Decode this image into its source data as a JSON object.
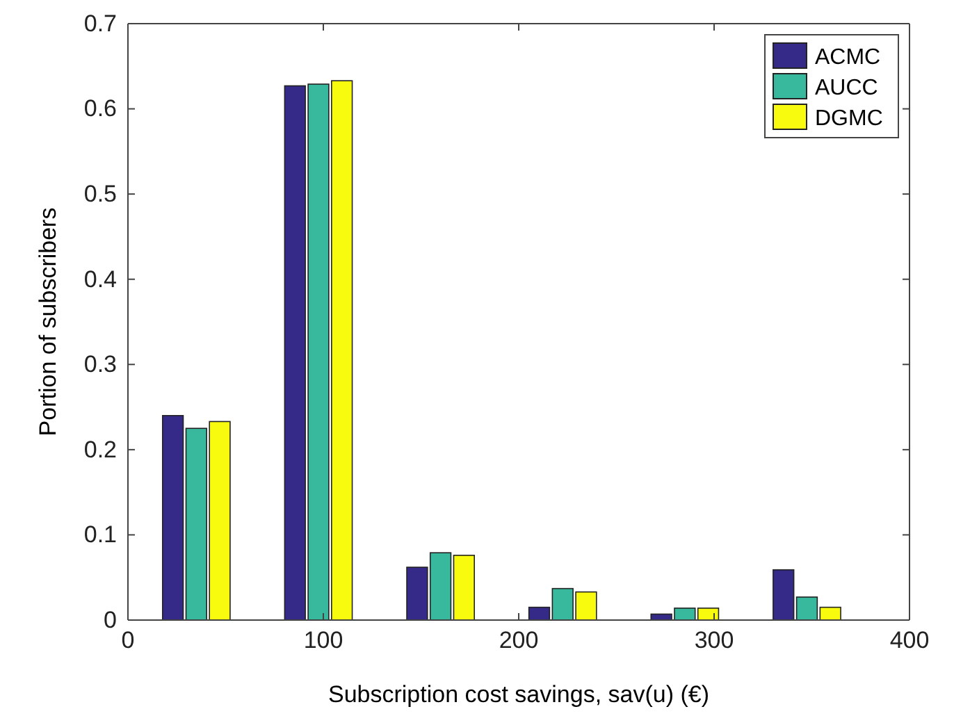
{
  "chart_data": {
    "type": "bar",
    "xlabel": "Subscription cost savings, sav(u) (€)",
    "ylabel": "Portion of subscribers",
    "x": [
      35,
      97.5,
      160,
      222.5,
      285,
      347.5
    ],
    "series": [
      {
        "name": "ACMC",
        "color": "#352a87",
        "values": [
          0.24,
          0.627,
          0.062,
          0.015,
          0.007,
          0.059
        ]
      },
      {
        "name": "AUCC",
        "color": "#38b99e",
        "values": [
          0.225,
          0.629,
          0.079,
          0.037,
          0.014,
          0.027
        ]
      },
      {
        "name": "DGMC",
        "color": "#f9fb0e",
        "values": [
          0.233,
          0.633,
          0.076,
          0.033,
          0.014,
          0.015
        ]
      }
    ],
    "xlim": [
      0,
      400
    ],
    "xticks": [
      0,
      100,
      200,
      300,
      400
    ],
    "ylim": [
      0,
      0.7
    ],
    "yticks": [
      0,
      0.1,
      0.2,
      0.3,
      0.4,
      0.5,
      0.6,
      0.7
    ],
    "grid": false,
    "legend": "top right"
  }
}
